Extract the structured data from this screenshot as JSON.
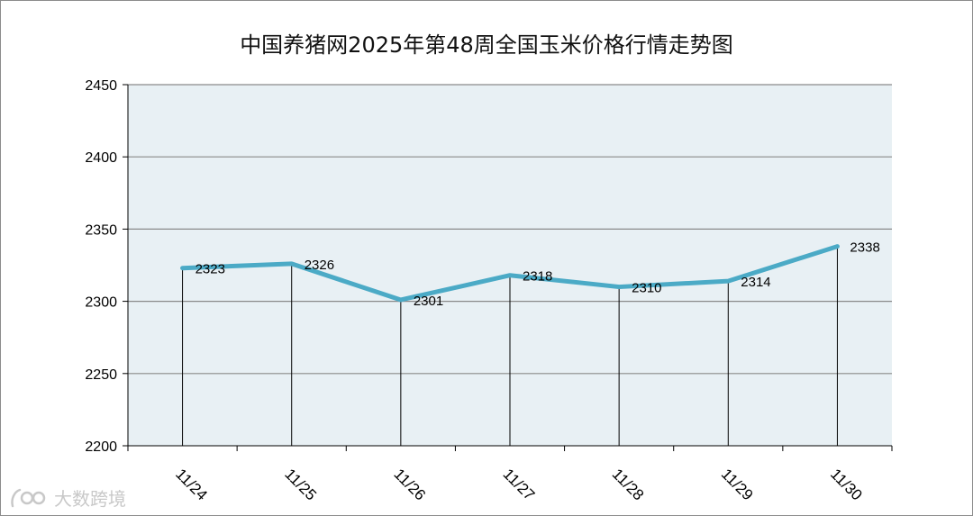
{
  "chart_data": {
    "type": "line",
    "title": "中国养猪网2025年第48周全国玉米价格行情走势图",
    "categories": [
      "11/24",
      "11/25",
      "11/26",
      "11/27",
      "11/28",
      "11/29",
      "11/30"
    ],
    "series": [
      {
        "values": [
          2323,
          2326,
          2301,
          2318,
          2310,
          2314,
          2338
        ]
      }
    ],
    "data_labels": [
      "2323",
      "2326",
      "2301",
      "2318",
      "2310",
      "2314",
      "2338"
    ],
    "ylim": [
      2200,
      2450
    ],
    "yticks": [
      2200,
      2250,
      2300,
      2350,
      2400,
      2450
    ],
    "ytick_labels": [
      "2200",
      "2250",
      "2300",
      "2350",
      "2400",
      "2450"
    ],
    "grid": true,
    "drop_lines": true,
    "legend": "none",
    "colors": {
      "line": "#4baac6",
      "plot_background": "#e8f0f4",
      "gridline": "#8a8a8a",
      "drop_line": "#000000"
    }
  },
  "watermark": {
    "text": "大数跨境",
    "icon": "logo-icon"
  }
}
